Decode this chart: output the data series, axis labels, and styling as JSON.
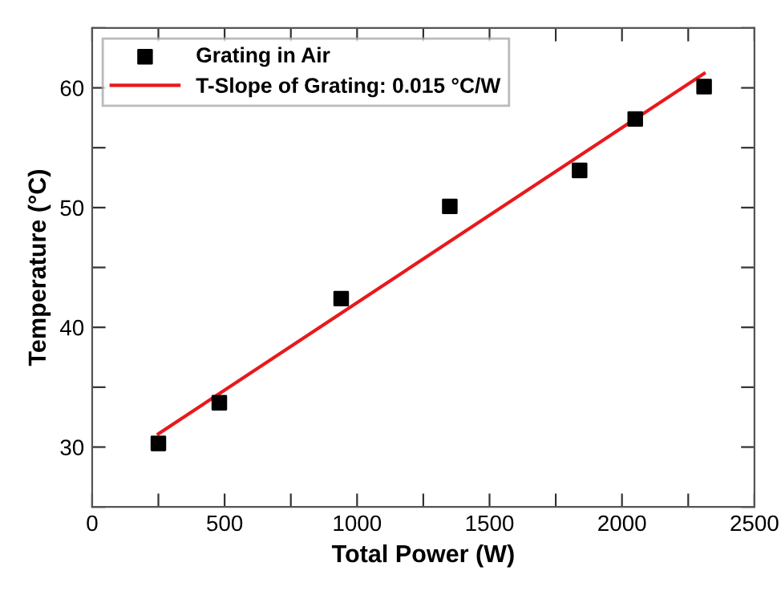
{
  "chart_data": {
    "type": "scatter",
    "xlabel": "Total Power (W)",
    "ylabel": "Temperature (°C)",
    "xlim": [
      0,
      2500
    ],
    "ylim": [
      25,
      65
    ],
    "xticks": [
      0,
      {
        "value": 250,
        "label": null
      },
      500,
      {
        "value": 750,
        "label": null
      },
      1000,
      {
        "value": 1250,
        "label": null
      },
      1500,
      {
        "value": 1750,
        "label": null
      },
      2000,
      {
        "value": 2250,
        "label": null
      },
      2500
    ],
    "yticks": [
      {
        "value": 25,
        "label": null
      },
      30,
      {
        "value": 35,
        "label": null
      },
      40,
      {
        "value": 45,
        "label": null
      },
      50,
      {
        "value": 55,
        "label": null
      },
      60,
      {
        "value": 65,
        "label": null
      }
    ],
    "series": [
      {
        "name": "Grating in Air",
        "color": "#000000",
        "marker": "square",
        "x": [
          250,
          480,
          940,
          1350,
          1840,
          2050,
          2310
        ],
        "values": [
          30.3,
          33.7,
          42.4,
          50.1,
          53.1,
          57.4,
          60.1
        ]
      },
      {
        "name": "T-Slope of Grating: 0.015 °C/W",
        "type": "line",
        "color": "#e8191c",
        "marker": "none",
        "line_style": "solid",
        "x": [
          250,
          2310
        ],
        "values": [
          31.1,
          61.2
        ]
      }
    ],
    "legend": "top left",
    "grid": false
  }
}
